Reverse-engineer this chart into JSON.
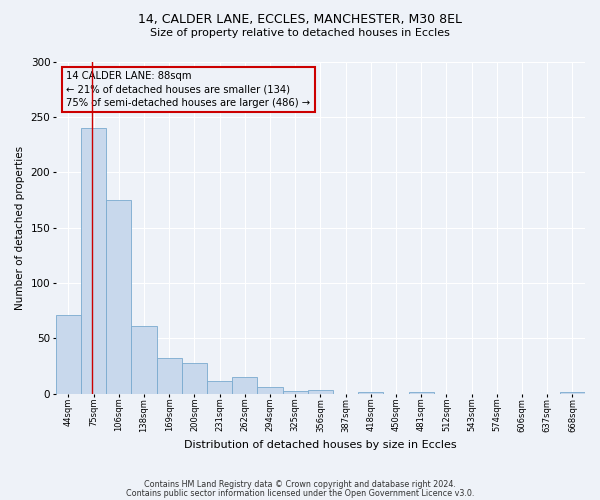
{
  "title1": "14, CALDER LANE, ECCLES, MANCHESTER, M30 8EL",
  "title2": "Size of property relative to detached houses in Eccles",
  "xlabel": "Distribution of detached houses by size in Eccles",
  "ylabel": "Number of detached properties",
  "footer1": "Contains HM Land Registry data © Crown copyright and database right 2024.",
  "footer2": "Contains public sector information licensed under the Open Government Licence v3.0.",
  "bin_labels": [
    "44sqm",
    "75sqm",
    "106sqm",
    "138sqm",
    "169sqm",
    "200sqm",
    "231sqm",
    "262sqm",
    "294sqm",
    "325sqm",
    "356sqm",
    "387sqm",
    "418sqm",
    "450sqm",
    "481sqm",
    "512sqm",
    "543sqm",
    "574sqm",
    "606sqm",
    "637sqm",
    "668sqm"
  ],
  "bar_values": [
    71,
    240,
    175,
    61,
    32,
    28,
    11,
    15,
    6,
    2,
    3,
    0,
    1,
    0,
    1,
    0,
    0,
    0,
    0,
    0,
    1
  ],
  "bar_color": "#c8d8ec",
  "bar_edge_color": "#7aaacf",
  "vline_x_bin": 1,
  "vline_color": "#cc0000",
  "annotation_box_text": "14 CALDER LANE: 88sqm\n← 21% of detached houses are smaller (134)\n75% of semi-detached houses are larger (486) →",
  "annotation_box_color": "#cc0000",
  "ylim": [
    0,
    300
  ],
  "yticks": [
    0,
    50,
    100,
    150,
    200,
    250,
    300
  ],
  "background_color": "#eef2f8",
  "grid_color": "#ffffff",
  "n_bins": 21
}
